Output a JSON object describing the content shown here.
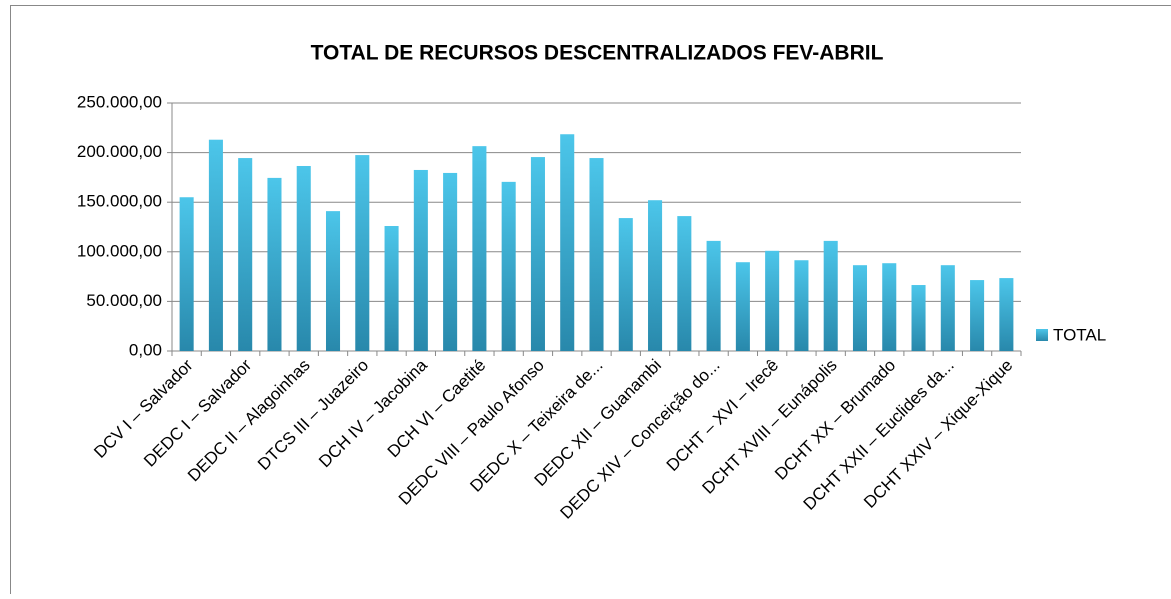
{
  "chart_data": {
    "type": "bar",
    "title": "TOTAL DE RECURSOS DESCENTRALIZADOS FEV-ABRIL",
    "categories": [
      "DCV I – Salvador",
      null,
      "DEDC I – Salvador",
      null,
      "DEDC II – Alagoinhas",
      null,
      "DTCS III – Juazeiro",
      null,
      "DCH IV – Jacobina",
      null,
      "DCH VI – Caetité",
      null,
      "DEDC VIII – Paulo Afonso",
      null,
      "DEDC X – Teixeira de...",
      null,
      "DEDC XII – Guanambi",
      null,
      "DEDC XIV – Conceição do...",
      null,
      "DCHT – XVI – Irecê",
      null,
      "DCHT XVIII – Eunápolis",
      null,
      "DCHT XX – Brumado",
      null,
      "DCHT XXII – Euclides da...",
      null,
      "DCHT XXIV – Xique-Xique"
    ],
    "series": [
      {
        "name": "TOTAL",
        "color": "#31a9d0",
        "values": [
          155000,
          213000,
          194500,
          174500,
          186500,
          141000,
          197500,
          126000,
          182500,
          179500,
          206500,
          170500,
          195500,
          218500,
          194500,
          134000,
          152000,
          136000,
          111000,
          89500,
          101000,
          91500,
          111000,
          86500,
          88500,
          66500,
          86500,
          71500,
          73500
        ]
      }
    ],
    "ylim": [
      0,
      250000
    ],
    "yticks": [
      {
        "value": 0,
        "label": "0,00"
      },
      {
        "value": 50000,
        "label": "50.000,00"
      },
      {
        "value": 100000,
        "label": "100.000,00"
      },
      {
        "value": 150000,
        "label": "150.000,00"
      },
      {
        "value": 200000,
        "label": "200.000,00"
      },
      {
        "value": 250000,
        "label": "250.000,00"
      }
    ],
    "grid": true,
    "legend": "right"
  }
}
